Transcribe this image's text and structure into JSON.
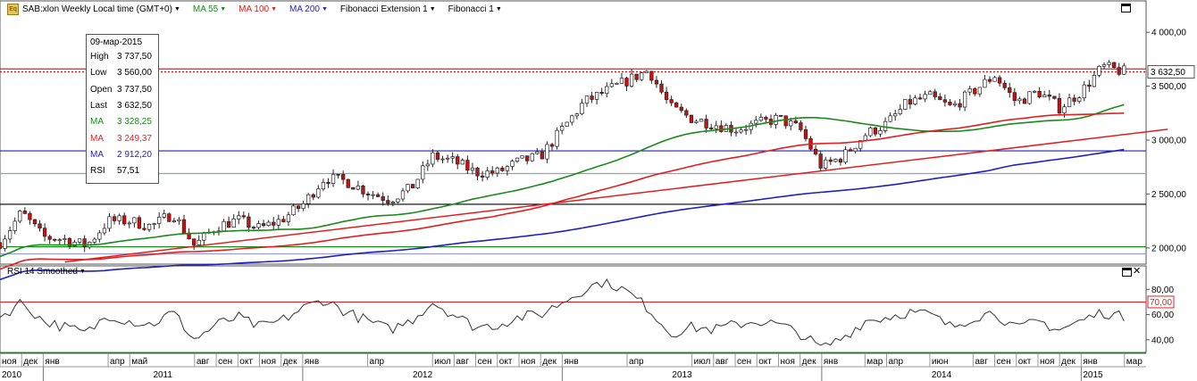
{
  "header": {
    "symbol": "SAB:xlon Weekly Local time (GMT+0)",
    "ma55": "MA 55",
    "ma100": "MA 100",
    "ma200": "MA 200",
    "fib_ext": "Fibonacci Extension 1",
    "fib": "Fibonacci 1",
    "logo_text": "Eq"
  },
  "rsi_header": {
    "label": "RSI 14 Smoothed"
  },
  "info_box": {
    "date": "09-мар-2015",
    "rows": [
      {
        "label": "High",
        "value": "3 737,50",
        "color": "#000000"
      },
      {
        "label": "Low",
        "value": "3 560,00",
        "color": "#000000"
      },
      {
        "label": "Open",
        "value": "3 737,50",
        "color": "#000000"
      },
      {
        "label": "Last",
        "value": "3 632,50",
        "color": "#000000"
      },
      {
        "label": "MA",
        "value": "3 328,25",
        "color": "#1a8a1a"
      },
      {
        "label": "MA",
        "value": "3 249,37",
        "color": "#e02020"
      },
      {
        "label": "MA",
        "value": "2 912,20",
        "color": "#2020c0"
      },
      {
        "label": "RSI",
        "value": "57,51",
        "color": "#000000"
      }
    ]
  },
  "colors": {
    "ma55": "#1a8a1a",
    "ma100": "#e02020",
    "ma200": "#2020c0",
    "candle_up": "#ffffff",
    "candle_down": "#cc1010",
    "rsi_line": "#333333"
  },
  "chart_data": {
    "type": "candlestick",
    "timeframe": "weekly",
    "price_axis": {
      "range": [
        1850,
        4150
      ],
      "ticks": [
        "4 000,00",
        "3 500,00",
        "3 000,00",
        "2 500,00",
        "2 000,00"
      ],
      "tick_values": [
        4000,
        3500,
        3000,
        2500,
        2000
      ]
    },
    "last_price": {
      "value": 3632.5,
      "label": "3 632,50"
    },
    "price_series_anchors": [
      [
        "2010-11",
        2050
      ],
      [
        "2010-12",
        2330
      ],
      [
        "2011-01",
        2100
      ],
      [
        "2011-02",
        2080
      ],
      [
        "2011-03",
        2020
      ],
      [
        "2011-04",
        2250
      ],
      [
        "2011-05",
        2250
      ],
      [
        "2011-06",
        2200
      ],
      [
        "2011-07",
        2320
      ],
      [
        "2011-08",
        2020
      ],
      [
        "2011-09",
        2200
      ],
      [
        "2011-10",
        2260
      ],
      [
        "2011-11",
        2180
      ],
      [
        "2011-12",
        2260
      ],
      [
        "2012-01",
        2400
      ],
      [
        "2012-02",
        2650
      ],
      [
        "2012-03",
        2620
      ],
      [
        "2012-04",
        2520
      ],
      [
        "2012-05",
        2450
      ],
      [
        "2012-06",
        2550
      ],
      [
        "2012-07",
        2850
      ],
      [
        "2012-08",
        2800
      ],
      [
        "2012-09",
        2700
      ],
      [
        "2012-10",
        2700
      ],
      [
        "2012-11",
        2800
      ],
      [
        "2012-12",
        2850
      ],
      [
        "2013-01",
        3100
      ],
      [
        "2013-02",
        3350
      ],
      [
        "2013-03",
        3450
      ],
      [
        "2013-04",
        3550
      ],
      [
        "2013-05",
        3650
      ],
      [
        "2013-06",
        3300
      ],
      [
        "2013-07",
        3200
      ],
      [
        "2013-08",
        3150
      ],
      [
        "2013-09",
        3100
      ],
      [
        "2013-10",
        3150
      ],
      [
        "2013-11",
        3200
      ],
      [
        "2013-12",
        3100
      ],
      [
        "2014-01",
        2750
      ],
      [
        "2014-02",
        2850
      ],
      [
        "2014-03",
        3050
      ],
      [
        "2014-04",
        3150
      ],
      [
        "2014-05",
        3350
      ],
      [
        "2014-06",
        3400
      ],
      [
        "2014-07",
        3300
      ],
      [
        "2014-08",
        3450
      ],
      [
        "2014-09",
        3600
      ],
      [
        "2014-10",
        3350
      ],
      [
        "2014-11",
        3450
      ],
      [
        "2014-12",
        3300
      ],
      [
        "2015-01",
        3450
      ],
      [
        "2015-02",
        3680
      ],
      [
        "2015-03",
        3632.5
      ]
    ],
    "moving_averages": [
      {
        "name": "MA 55",
        "period": 55,
        "last": 3328.25
      },
      {
        "name": "MA 100",
        "period": 100,
        "last": 3249.37
      },
      {
        "name": "MA 200",
        "period": 200,
        "last": 2912.2
      }
    ],
    "horizontal_levels": [
      {
        "value": 3632.5,
        "color": "#e02020",
        "style": "dotted"
      },
      {
        "value": 3660,
        "color": "#e02020",
        "style": "solid"
      },
      {
        "value": 2900,
        "color": "#2020c0",
        "style": "solid"
      },
      {
        "value": 2690,
        "color": "#9aa0a6",
        "style": "solid"
      },
      {
        "value": 2405,
        "color": "#000000",
        "style": "solid"
      },
      {
        "value": 2010,
        "color": "#1a8a1a",
        "style": "solid"
      },
      {
        "value": 1945,
        "color": "#9aa0d0",
        "style": "solid"
      }
    ],
    "trendline": {
      "from": [
        "2011-02",
        1870
      ],
      "to": [
        "2015-05",
        3100
      ],
      "color": "#e02020"
    },
    "rsi": {
      "name": "RSI 14 Smoothed",
      "range": [
        30,
        88
      ],
      "ticks": [
        "80,00",
        "60,00",
        "40,00"
      ],
      "tick_values": [
        80,
        60,
        40
      ],
      "levels": [
        {
          "value": 70,
          "label": "70,00",
          "color": "#e02020"
        },
        {
          "value": 30,
          "color": "#1a8a1a"
        }
      ],
      "last": 57.51,
      "anchors": [
        [
          "2010-11",
          58
        ],
        [
          "2010-12",
          70
        ],
        [
          "2011-01",
          55
        ],
        [
          "2011-02",
          50
        ],
        [
          "2011-03",
          45
        ],
        [
          "2011-04",
          60
        ],
        [
          "2011-05",
          55
        ],
        [
          "2011-06",
          52
        ],
        [
          "2011-07",
          62
        ],
        [
          "2011-08",
          40
        ],
        [
          "2011-09",
          52
        ],
        [
          "2011-10",
          58
        ],
        [
          "2011-11",
          50
        ],
        [
          "2011-12",
          55
        ],
        [
          "2012-01",
          65
        ],
        [
          "2012-02",
          72
        ],
        [
          "2012-03",
          62
        ],
        [
          "2012-04",
          55
        ],
        [
          "2012-05",
          48
        ],
        [
          "2012-06",
          55
        ],
        [
          "2012-07",
          70
        ],
        [
          "2012-08",
          60
        ],
        [
          "2012-09",
          50
        ],
        [
          "2012-10",
          52
        ],
        [
          "2012-11",
          58
        ],
        [
          "2012-12",
          60
        ],
        [
          "2013-01",
          70
        ],
        [
          "2013-02",
          80
        ],
        [
          "2013-03",
          87
        ],
        [
          "2013-04",
          78
        ],
        [
          "2013-05",
          65
        ],
        [
          "2013-06",
          45
        ],
        [
          "2013-07",
          50
        ],
        [
          "2013-08",
          48
        ],
        [
          "2013-09",
          52
        ],
        [
          "2013-10",
          55
        ],
        [
          "2013-11",
          52
        ],
        [
          "2013-12",
          45
        ],
        [
          "2014-01",
          33
        ],
        [
          "2014-02",
          42
        ],
        [
          "2014-03",
          55
        ],
        [
          "2014-04",
          58
        ],
        [
          "2014-05",
          62
        ],
        [
          "2014-06",
          60
        ],
        [
          "2014-07",
          50
        ],
        [
          "2014-08",
          58
        ],
        [
          "2014-09",
          62
        ],
        [
          "2014-10",
          48
        ],
        [
          "2014-11",
          55
        ],
        [
          "2014-12",
          48
        ],
        [
          "2015-01",
          55
        ],
        [
          "2015-02",
          62
        ],
        [
          "2015-03",
          57.51
        ]
      ]
    },
    "x_axis": {
      "start": "2010-11",
      "end": "2015-04",
      "month_labels": [
        [
          "2010-11",
          "ноя"
        ],
        [
          "2010-12",
          "дек"
        ],
        [
          "2011-01",
          "янв"
        ],
        [
          "2011-04",
          "апр"
        ],
        [
          "2011-05",
          "май"
        ],
        [
          "2011-08",
          "авг"
        ],
        [
          "2011-09",
          "сен"
        ],
        [
          "2011-10",
          "окт"
        ],
        [
          "2011-11",
          "ноя"
        ],
        [
          "2011-12",
          "дек"
        ],
        [
          "2012-01",
          "янв"
        ],
        [
          "2012-04",
          "апр"
        ],
        [
          "2012-07",
          "июл"
        ],
        [
          "2012-08",
          "авг"
        ],
        [
          "2012-09",
          "сен"
        ],
        [
          "2012-10",
          "окт"
        ],
        [
          "2012-11",
          "ноя"
        ],
        [
          "2012-12",
          "дек"
        ],
        [
          "2013-01",
          "янв"
        ],
        [
          "2013-04",
          "апр"
        ],
        [
          "2013-07",
          "июл"
        ],
        [
          "2013-08",
          "авг"
        ],
        [
          "2013-09",
          "сен"
        ],
        [
          "2013-10",
          "окт"
        ],
        [
          "2013-11",
          "ноя"
        ],
        [
          "2013-12",
          "дек"
        ],
        [
          "2014-01",
          "янв"
        ],
        [
          "2014-03",
          "мар"
        ],
        [
          "2014-04",
          "апр"
        ],
        [
          "2014-06",
          "июн"
        ],
        [
          "2014-08",
          "авг"
        ],
        [
          "2014-09",
          "сен"
        ],
        [
          "2014-10",
          "окт"
        ],
        [
          "2014-11",
          "ноя"
        ],
        [
          "2014-12",
          "дек"
        ],
        [
          "2015-01",
          "янв"
        ],
        [
          "2015-03",
          "мар"
        ]
      ],
      "year_labels": [
        [
          "2010-11",
          "2010"
        ],
        [
          "2011-06",
          "2011"
        ],
        [
          "2012-06",
          "2012"
        ],
        [
          "2013-06",
          "2013"
        ],
        [
          "2014-06",
          "2014"
        ],
        [
          "2015-01",
          "2015"
        ]
      ]
    }
  }
}
